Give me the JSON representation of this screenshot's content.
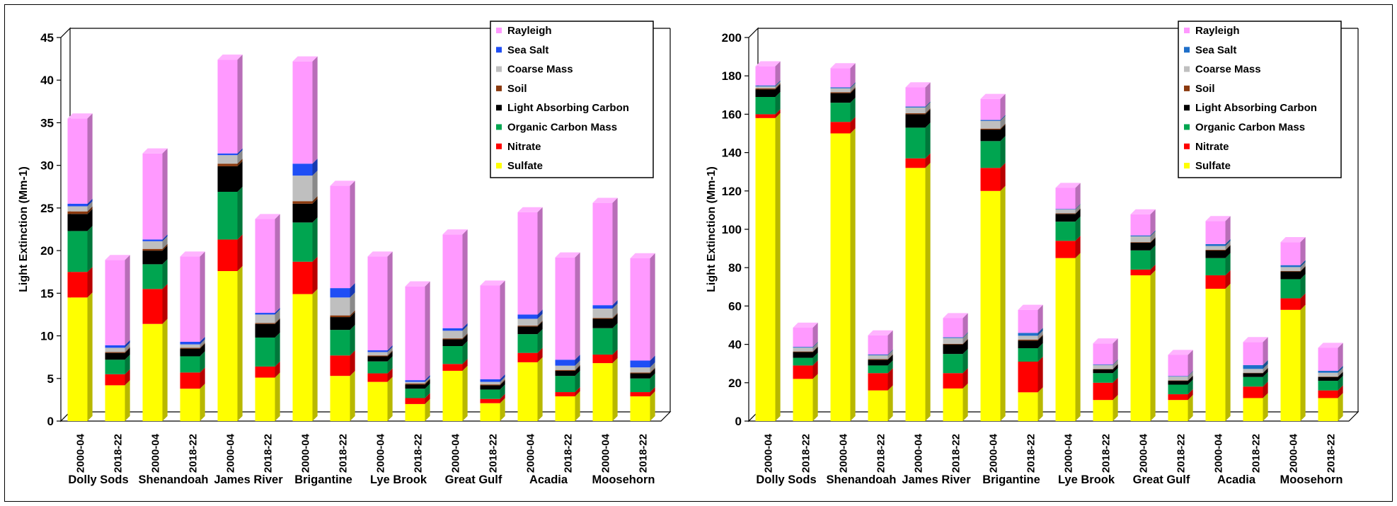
{
  "chart_data": [
    {
      "type": "bar",
      "stacked": true,
      "ylabel": "Light Extinction (Mm-1)",
      "ylim": [
        0,
        45
      ],
      "ytick_step": 5,
      "ytick_labels": [
        "0",
        "5",
        "10",
        "15",
        "20",
        "25",
        "30",
        "35",
        "40",
        "45"
      ],
      "categories": [
        "2000-04",
        "2018-22",
        "2000-04",
        "2018-22",
        "2000-04",
        "2018-22",
        "2000-04",
        "2018-22",
        "2000-04",
        "2018-22",
        "2000-04",
        "2018-22",
        "2000-04",
        "2018-22",
        "2000-04",
        "2018-22"
      ],
      "groups": [
        "Dolly Sods",
        "Shenandoah",
        "James River",
        "Brigantine",
        "Lye Brook",
        "Great Gulf",
        "Acadia",
        "Moosehorn"
      ],
      "legend_position": "top-right",
      "series": [
        {
          "name": "Sulfate",
          "color": "#ffff00",
          "values": [
            14.5,
            4.2,
            11.4,
            3.8,
            17.6,
            5.1,
            14.9,
            5.3,
            4.6,
            2.0,
            5.9,
            2.1,
            6.9,
            2.9,
            6.8,
            2.9
          ]
        },
        {
          "name": "Nitrate",
          "color": "#ff0000",
          "values": [
            3.0,
            1.3,
            4.1,
            1.9,
            3.7,
            1.3,
            3.8,
            2.4,
            1.0,
            0.7,
            0.8,
            0.5,
            1.1,
            0.5,
            1.0,
            0.5
          ]
        },
        {
          "name": "Organic Carbon Mass",
          "color": "#00a550",
          "values": [
            4.8,
            1.7,
            2.9,
            1.9,
            5.6,
            3.4,
            4.6,
            3.0,
            1.4,
            1.1,
            2.1,
            1.1,
            2.2,
            1.9,
            3.1,
            1.6
          ]
        },
        {
          "name": "Light Absorbing Carbon",
          "color": "#000000",
          "values": [
            2.0,
            0.8,
            1.6,
            0.9,
            3.0,
            1.6,
            2.2,
            1.5,
            0.6,
            0.5,
            0.8,
            0.5,
            0.9,
            0.6,
            1.1,
            0.6
          ]
        },
        {
          "name": "Soil",
          "color": "#8b3a0f",
          "values": [
            0.3,
            0.1,
            0.2,
            0.1,
            0.3,
            0.1,
            0.3,
            0.2,
            0.1,
            0.1,
            0.1,
            0.1,
            0.1,
            0.1,
            0.1,
            0.1
          ]
        },
        {
          "name": "Coarse Mass",
          "color": "#bfbfbf",
          "values": [
            0.6,
            0.5,
            0.9,
            0.4,
            1.0,
            1.0,
            3.0,
            2.1,
            0.4,
            0.2,
            0.9,
            0.3,
            0.8,
            0.5,
            1.1,
            0.6
          ]
        },
        {
          "name": "Sea Salt",
          "color": "#1f4ef5",
          "values": [
            0.3,
            0.3,
            0.2,
            0.3,
            0.2,
            0.2,
            1.4,
            1.1,
            0.2,
            0.2,
            0.3,
            0.3,
            0.5,
            0.7,
            0.4,
            0.8
          ]
        },
        {
          "name": "Rayleigh",
          "color": "#ff99ff",
          "values": [
            10.0,
            10.0,
            10.1,
            10.0,
            11.0,
            11.0,
            12.0,
            12.0,
            11.0,
            11.0,
            11.0,
            11.0,
            12.0,
            12.0,
            12.0,
            12.0
          ]
        }
      ]
    },
    {
      "type": "bar",
      "stacked": true,
      "ylabel": "Light Extinction (Mm-1)",
      "ylim": [
        0,
        200
      ],
      "ytick_step": 20,
      "ytick_labels": [
        "0",
        "20",
        "40",
        "60",
        "80",
        "100",
        "120",
        "140",
        "160",
        "180",
        "200"
      ],
      "categories": [
        "2000-04",
        "2018-22",
        "2000-04",
        "2018-22",
        "2000-04",
        "2018-22",
        "2000-04",
        "2018-22",
        "2000-04",
        "2018-22",
        "2000-04",
        "2018-22",
        "2000-04",
        "2018-22",
        "2000-04",
        "2018-22"
      ],
      "groups": [
        "Dolly Sods",
        "Shenandoah",
        "James River",
        "Brigantine",
        "Lye Brook",
        "Great Gulf",
        "Acadia",
        "Moosehorn"
      ],
      "legend_position": "top-right",
      "series": [
        {
          "name": "Sulfate",
          "color": "#ffff00",
          "values": [
            158,
            22,
            150,
            16,
            132,
            17,
            120,
            15,
            85,
            11,
            76,
            11,
            69,
            12,
            58,
            12
          ]
        },
        {
          "name": "Nitrate",
          "color": "#ff0000",
          "values": [
            2,
            7,
            6,
            9,
            5,
            8,
            12,
            16,
            9,
            9,
            3,
            3,
            7,
            6,
            6,
            4
          ]
        },
        {
          "name": "Organic Carbon Mass",
          "color": "#00a550",
          "values": [
            9,
            4,
            10,
            4,
            16,
            10,
            14,
            7,
            10,
            5,
            10,
            5,
            9,
            5,
            10,
            5
          ]
        },
        {
          "name": "Light Absorbing Carbon",
          "color": "#000000",
          "values": [
            4,
            3,
            5,
            3,
            7,
            5,
            6,
            4,
            4,
            2,
            4,
            2,
            4,
            2,
            4,
            2
          ]
        },
        {
          "name": "Soil",
          "color": "#8b3a0f",
          "values": [
            0.5,
            0.3,
            0.5,
            0.3,
            0.5,
            0.3,
            0.5,
            0.5,
            0.3,
            0.2,
            0.3,
            0.2,
            0.3,
            0.2,
            0.3,
            0.2
          ]
        },
        {
          "name": "Coarse Mass",
          "color": "#bfbfbf",
          "values": [
            1,
            2,
            2,
            2,
            3,
            3,
            4,
            2,
            2,
            2,
            3,
            2,
            2,
            2,
            2,
            2
          ]
        },
        {
          "name": "Sea Salt",
          "color": "#1f6fc9",
          "values": [
            0.5,
            0.4,
            0.5,
            0.4,
            0.5,
            0.4,
            0.5,
            1.5,
            0.3,
            0.3,
            0.5,
            0.3,
            1,
            2,
            1,
            1
          ]
        },
        {
          "name": "Rayleigh",
          "color": "#ff99ff",
          "values": [
            10,
            10,
            10,
            10,
            10,
            10,
            11,
            12,
            11,
            11,
            11,
            11,
            12,
            12,
            12,
            12
          ]
        }
      ]
    }
  ]
}
